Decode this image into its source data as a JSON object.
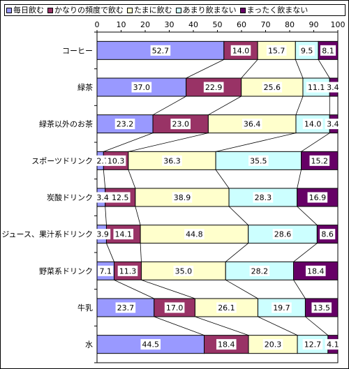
{
  "legend": [
    {
      "label": "毎日飲む",
      "color": "#9999ff"
    },
    {
      "label": "かなりの頻度で飲む",
      "color": "#993366"
    },
    {
      "label": "たまに飲む",
      "color": "#ffffcc"
    },
    {
      "label": "あまり飲まない",
      "color": "#ccffff"
    },
    {
      "label": "まったく飲まない",
      "color": "#660066"
    }
  ],
  "chart_data": {
    "type": "bar",
    "orientation": "horizontal",
    "stacked": true,
    "percent_stacked": true,
    "xlim": [
      0,
      100
    ],
    "xticks": [
      "0",
      "10",
      "20",
      "30",
      "40",
      "50",
      "60",
      "70",
      "80",
      "90",
      "100"
    ],
    "grid": false,
    "legend_position": "top",
    "categories": [
      "コーヒー",
      "緑茶",
      "緑茶以外のお茶",
      "スポーツドリンク",
      "炭酸ドリンク",
      "ジュース、果汁系ドリンク",
      "野菜系ドリンク",
      "牛乳",
      "水"
    ],
    "series": [
      {
        "name": "毎日飲む",
        "color": "#9999ff",
        "values": [
          52.7,
          37.0,
          23.2,
          2.7,
          3.4,
          3.9,
          7.1,
          23.7,
          44.5
        ]
      },
      {
        "name": "かなりの頻度で飲む",
        "color": "#993366",
        "values": [
          14.0,
          22.9,
          23.0,
          10.3,
          12.5,
          14.1,
          11.3,
          17.0,
          18.4
        ]
      },
      {
        "name": "たまに飲む",
        "color": "#ffffcc",
        "values": [
          15.7,
          25.6,
          36.4,
          36.3,
          38.9,
          44.8,
          35.0,
          26.1,
          20.3
        ]
      },
      {
        "name": "あまり飲まない",
        "color": "#ccffff",
        "values": [
          9.5,
          11.1,
          14.0,
          35.5,
          28.3,
          28.6,
          28.2,
          19.7,
          12.7
        ]
      },
      {
        "name": "まったく飲まない",
        "color": "#660066",
        "values": [
          8.1,
          3.4,
          3.4,
          15.2,
          16.9,
          8.6,
          18.4,
          13.5,
          4.1
        ]
      }
    ]
  }
}
